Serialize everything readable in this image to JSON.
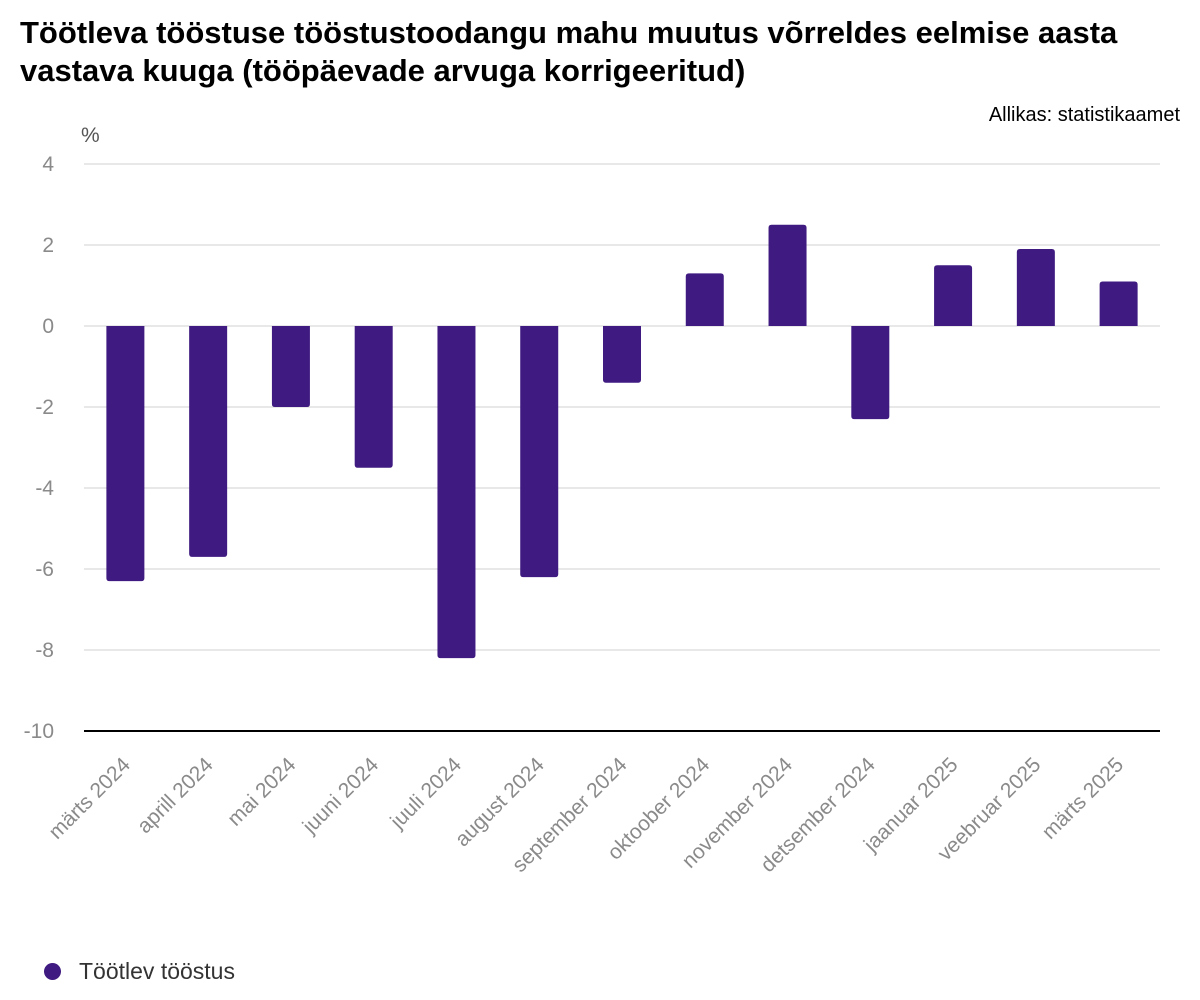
{
  "title": "Töötleva tööstuse tööstustoodangu mahu muutus võrreldes eelmise aasta vastava kuuga (tööpäevade arvuga korrigeeritud)",
  "source": "Allikas: statistikaamet",
  "colors": {
    "bar": "#3f1a80",
    "grid": "#d9d9d9",
    "axis": "#000000",
    "tick_text": "#8a8a8a"
  },
  "chart_data": {
    "type": "bar",
    "title": "Töötleva tööstuse tööstustoodangu mahu muutus võrreldes eelmise aasta vastava kuuga (tööpäevade arvuga korrigeeritud)",
    "ylabel": "%",
    "xlabel": "",
    "ylim": [
      -10,
      4
    ],
    "yticks": [
      "4",
      "2",
      "0",
      "-2",
      "-4",
      "-6",
      "-8",
      "-10"
    ],
    "ytick_values": [
      4,
      2,
      0,
      -2,
      -4,
      -6,
      -8,
      -10
    ],
    "grid": true,
    "legend_position": "bottom-left",
    "categories": [
      "märts 2024",
      "aprill 2024",
      "mai 2024",
      "juuni 2024",
      "juuli 2024",
      "august 2024",
      "september 2024",
      "oktoober 2024",
      "november 2024",
      "detsember 2024",
      "jaanuar 2025",
      "veebruar 2025",
      "märts 2025"
    ],
    "series": [
      {
        "name": "Töötlev tööstus",
        "values": [
          -6.3,
          -5.7,
          -2.0,
          -3.5,
          -8.2,
          -6.2,
          -1.4,
          1.3,
          2.5,
          -2.3,
          1.5,
          1.9,
          1.1
        ]
      }
    ]
  }
}
